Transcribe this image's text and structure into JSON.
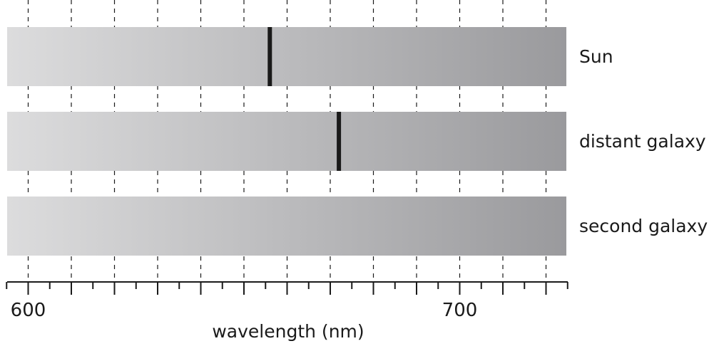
{
  "spectra": [
    {
      "label": "Sun",
      "absorption_line_nm": 656
    },
    {
      "label": "distant galaxy",
      "absorption_line_nm": 672
    },
    {
      "label": "second galaxy",
      "absorption_line_nm": null
    }
  ],
  "axis": {
    "title": "wavelength (nm)",
    "range_nm": [
      595,
      725
    ],
    "major_ticks_nm": [
      600,
      610,
      620,
      630,
      640,
      650,
      660,
      670,
      680,
      690,
      700,
      710,
      720
    ],
    "minor_tick_step_nm": 5,
    "labels": [
      {
        "value": 600,
        "text": "600"
      },
      {
        "value": 700,
        "text": "700"
      }
    ]
  },
  "colors": {
    "gradient_start": "#dcdcdd",
    "gradient_end": "#9a9a9d",
    "line": "#1a1a1a",
    "grid": "#1a1a1a"
  }
}
